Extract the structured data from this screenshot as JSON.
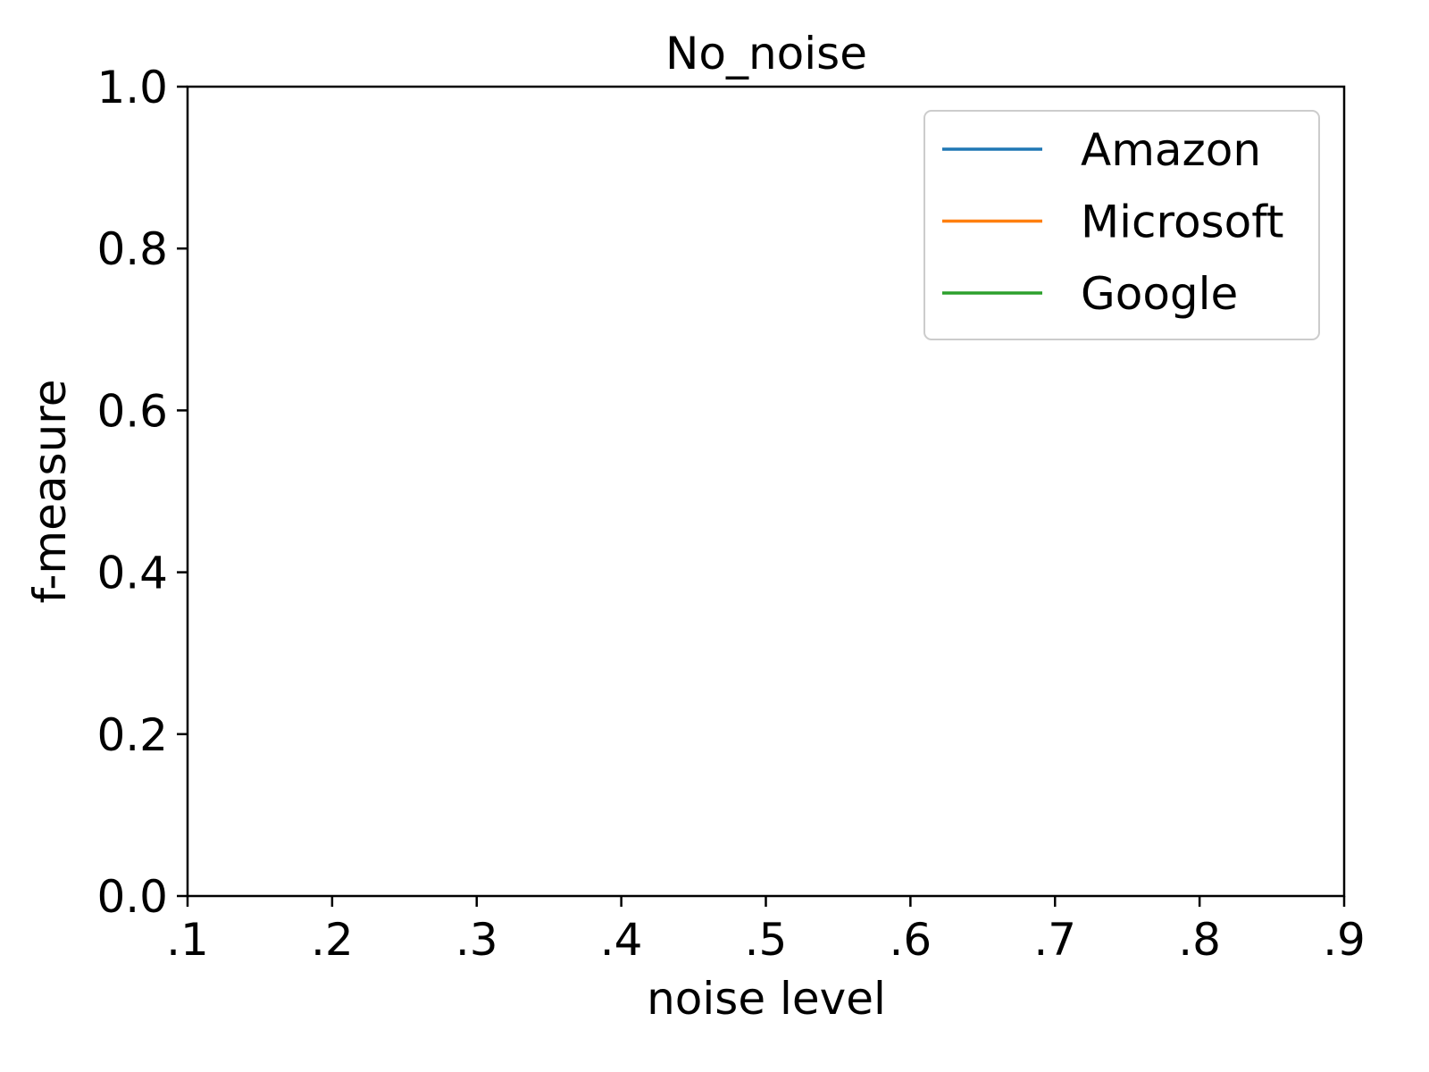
{
  "chart_data": {
    "type": "line",
    "title": "No_noise",
    "xlabel": "noise level",
    "ylabel": "f-measure",
    "x_ticks": [
      ".1",
      ".2",
      ".3",
      ".4",
      ".5",
      ".6",
      ".7",
      ".8",
      ".9"
    ],
    "y_ticks": [
      "0.0",
      "0.2",
      "0.4",
      "0.6",
      "0.8",
      "1.0"
    ],
    "xlim": [
      0.1,
      0.9
    ],
    "ylim": [
      0.0,
      1.0
    ],
    "grid": false,
    "legend_position": "top-right",
    "series": [
      {
        "name": "Amazon",
        "color": "#1f77b4",
        "x": [],
        "y": []
      },
      {
        "name": "Microsoft",
        "color": "#ff7f0e",
        "x": [],
        "y": []
      },
      {
        "name": "Google",
        "color": "#2ca02c",
        "x": [],
        "y": []
      }
    ]
  }
}
